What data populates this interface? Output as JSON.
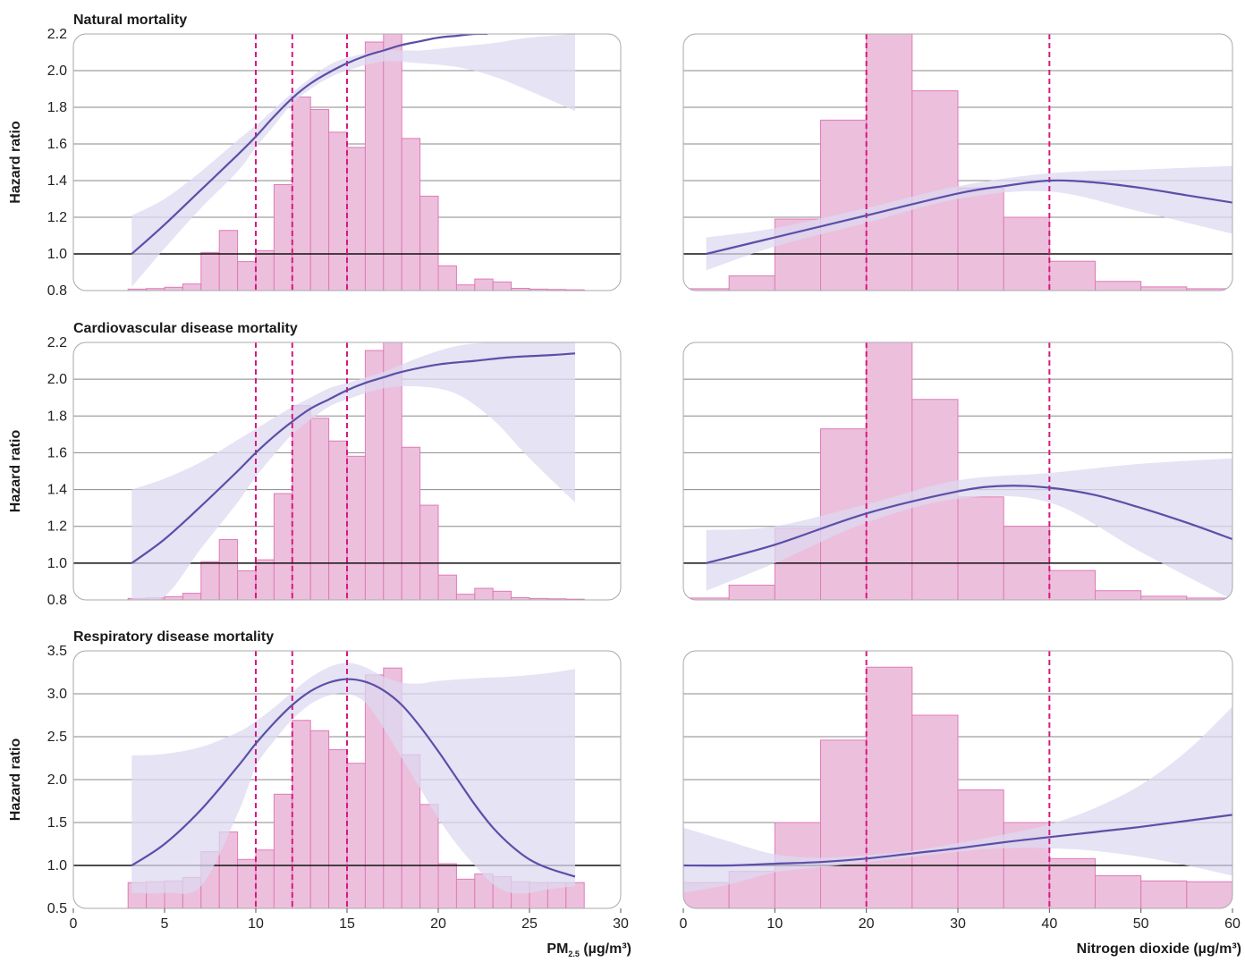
{
  "colors": {
    "bar_fill": "#ecc0dc",
    "bar_stroke": "#e07ab8",
    "curve": "#5b4fa8",
    "band": "#dcdaf0",
    "vline": "#d9177f",
    "grid": "#888888",
    "ref_line": "#111111",
    "frame": "#aaaaaa"
  },
  "xaxis": {
    "pm": {
      "label_main": "PM",
      "label_sub": "2.5",
      "label_units": " (µg/m³)",
      "range": [
        0,
        30
      ],
      "ticks": [
        "0",
        "5",
        "10",
        "15",
        "20",
        "25",
        "30"
      ]
    },
    "no2": {
      "label": "Nitrogen dioxide (µg/m³)",
      "range": [
        0,
        60
      ],
      "ticks": [
        "0",
        "10",
        "20",
        "30",
        "40",
        "50",
        "60"
      ]
    }
  },
  "chart_data": [
    {
      "type": "line",
      "row": 0,
      "exposure": "pm",
      "title": "Natural mortality",
      "ylabel": "Hazard ratio",
      "ylim": [
        0.8,
        2.2
      ],
      "yticks": [
        "0.8",
        "1.0",
        "1.2",
        "1.4",
        "1.6",
        "1.8",
        "2.0",
        "2.2"
      ],
      "reference_y": 1.0,
      "vlines": [
        10,
        12,
        15
      ],
      "curve": {
        "x": [
          3.2,
          5,
          7,
          9,
          10,
          11,
          12,
          13,
          14,
          15,
          16,
          17,
          18,
          19,
          20,
          21,
          22,
          22.7
        ],
        "y": [
          1.0,
          1.16,
          1.35,
          1.54,
          1.64,
          1.75,
          1.85,
          1.93,
          1.99,
          2.04,
          2.08,
          2.11,
          2.14,
          2.16,
          2.18,
          2.19,
          2.2,
          2.2
        ]
      },
      "band_upper": {
        "x": [
          3.2,
          5,
          7,
          9,
          10,
          11,
          12,
          13,
          14,
          15,
          17,
          19,
          21,
          23,
          25,
          27.5
        ],
        "y": [
          1.21,
          1.3,
          1.45,
          1.62,
          1.7,
          1.79,
          1.88,
          1.96,
          2.03,
          2.07,
          2.11,
          2.11,
          2.13,
          2.15,
          2.18,
          2.2
        ]
      },
      "band_lower": {
        "x": [
          3.2,
          5,
          7,
          9,
          10,
          11,
          12,
          13,
          14,
          15,
          17,
          19,
          21,
          23,
          25,
          27.5
        ],
        "y": [
          0.82,
          1.03,
          1.25,
          1.45,
          1.58,
          1.7,
          1.82,
          1.9,
          1.96,
          2.0,
          2.05,
          2.04,
          2.02,
          1.97,
          1.89,
          1.78
        ]
      },
      "hist": {
        "edges": [
          3,
          4,
          5,
          6,
          7,
          8,
          9,
          10,
          11,
          12,
          13,
          14,
          15,
          16,
          17,
          18,
          19,
          20,
          21,
          22,
          23,
          24,
          25,
          26,
          27,
          28
        ],
        "heights": [
          0.808,
          0.811,
          0.818,
          0.836,
          1.008,
          1.128,
          0.958,
          1.018,
          1.378,
          1.856,
          1.788,
          1.664,
          1.581,
          2.156,
          2.2,
          1.63,
          1.315,
          0.935,
          0.831,
          0.863,
          0.847,
          0.812,
          0.808,
          0.806,
          0.804
        ]
      }
    },
    {
      "type": "line",
      "row": 0,
      "exposure": "no2",
      "ylim": [
        0.8,
        2.2
      ],
      "reference_y": 1.0,
      "vlines": [
        20,
        40
      ],
      "curve": {
        "x": [
          2.5,
          10,
          20,
          30,
          35,
          40,
          45,
          50,
          55,
          60
        ],
        "y": [
          1.0,
          1.09,
          1.21,
          1.33,
          1.37,
          1.4,
          1.39,
          1.36,
          1.32,
          1.28
        ]
      },
      "band_upper": {
        "x": [
          2.5,
          10,
          20,
          30,
          40,
          50,
          60
        ],
        "y": [
          1.09,
          1.14,
          1.25,
          1.37,
          1.44,
          1.46,
          1.48
        ]
      },
      "band_lower": {
        "x": [
          2.5,
          10,
          20,
          30,
          40,
          50,
          60
        ],
        "y": [
          0.91,
          1.04,
          1.17,
          1.3,
          1.34,
          1.23,
          1.11
        ]
      },
      "hist": {
        "edges": [
          0,
          5,
          10,
          15,
          20,
          25,
          30,
          35,
          40,
          45,
          50,
          55,
          60
        ],
        "heights": [
          0.81,
          0.88,
          1.19,
          1.73,
          2.2,
          1.89,
          1.36,
          1.2,
          0.96,
          0.85,
          0.82,
          0.81
        ]
      }
    },
    {
      "type": "line",
      "row": 1,
      "exposure": "pm",
      "title": "Cardiovascular disease mortality",
      "ylabel": "Hazard ratio",
      "ylim": [
        0.8,
        2.2
      ],
      "yticks": [
        "0.8",
        "1.0",
        "1.2",
        "1.4",
        "1.6",
        "1.8",
        "2.0",
        "2.2"
      ],
      "reference_y": 1.0,
      "vlines": [
        10,
        12,
        15
      ],
      "curve": {
        "x": [
          3.2,
          5,
          7,
          9,
          10,
          11,
          12,
          13,
          14,
          15,
          16,
          17,
          18,
          20,
          22,
          24,
          26,
          27.5
        ],
        "y": [
          1.0,
          1.13,
          1.31,
          1.5,
          1.6,
          1.69,
          1.77,
          1.84,
          1.89,
          1.94,
          1.98,
          2.01,
          2.04,
          2.08,
          2.1,
          2.12,
          2.13,
          2.14
        ]
      },
      "band_upper": {
        "x": [
          3.2,
          5,
          7,
          9,
          10,
          11,
          12,
          13,
          14,
          15,
          17,
          19,
          21,
          23,
          25,
          27.5
        ],
        "y": [
          1.4,
          1.46,
          1.55,
          1.67,
          1.73,
          1.79,
          1.85,
          1.9,
          1.95,
          1.98,
          2.04,
          2.12,
          2.18,
          2.2,
          2.2,
          2.2
        ]
      },
      "band_lower": {
        "x": [
          3.2,
          5,
          7,
          9,
          10,
          11,
          12,
          13,
          14,
          15,
          17,
          19,
          21,
          23,
          25,
          27.5
        ],
        "y": [
          0.8,
          0.82,
          1.08,
          1.33,
          1.47,
          1.59,
          1.7,
          1.78,
          1.85,
          1.89,
          1.95,
          1.96,
          1.92,
          1.78,
          1.57,
          1.33
        ]
      },
      "hist": {
        "edges": [
          3,
          4,
          5,
          6,
          7,
          8,
          9,
          10,
          11,
          12,
          13,
          14,
          15,
          16,
          17,
          18,
          19,
          20,
          21,
          22,
          23,
          24,
          25,
          26,
          27,
          28
        ],
        "heights": [
          0.808,
          0.811,
          0.818,
          0.836,
          1.008,
          1.128,
          0.958,
          1.018,
          1.378,
          1.856,
          1.788,
          1.664,
          1.581,
          2.156,
          2.2,
          1.63,
          1.315,
          0.935,
          0.831,
          0.863,
          0.847,
          0.812,
          0.808,
          0.806,
          0.804
        ]
      }
    },
    {
      "type": "line",
      "row": 1,
      "exposure": "no2",
      "ylim": [
        0.8,
        2.2
      ],
      "reference_y": 1.0,
      "vlines": [
        20,
        40
      ],
      "curve": {
        "x": [
          2.5,
          10,
          20,
          30,
          35,
          40,
          45,
          50,
          55,
          60
        ],
        "y": [
          1.0,
          1.1,
          1.27,
          1.39,
          1.42,
          1.41,
          1.37,
          1.3,
          1.22,
          1.13
        ]
      },
      "band_upper": {
        "x": [
          2.5,
          10,
          20,
          30,
          40,
          50,
          60
        ],
        "y": [
          1.18,
          1.2,
          1.32,
          1.45,
          1.49,
          1.54,
          1.57
        ]
      },
      "band_lower": {
        "x": [
          2.5,
          10,
          20,
          30,
          40,
          50,
          60
        ],
        "y": [
          0.85,
          1.0,
          1.22,
          1.35,
          1.33,
          1.06,
          0.8
        ]
      },
      "hist": {
        "edges": [
          0,
          5,
          10,
          15,
          20,
          25,
          30,
          35,
          40,
          45,
          50,
          55,
          60
        ],
        "heights": [
          0.81,
          0.88,
          1.19,
          1.73,
          2.2,
          1.89,
          1.36,
          1.2,
          0.96,
          0.85,
          0.82,
          0.81
        ]
      }
    },
    {
      "type": "line",
      "row": 2,
      "exposure": "pm",
      "title": "Respiratory disease mortality",
      "ylabel": "Hazard ratio",
      "ylim": [
        0.5,
        3.5
      ],
      "yticks": [
        "0.5",
        "1.0",
        "1.5",
        "2.0",
        "2.5",
        "3.0",
        "3.5"
      ],
      "reference_y": 1.0,
      "vlines": [
        10,
        12,
        15
      ],
      "curve": {
        "x": [
          3.2,
          5,
          7,
          9,
          10,
          11,
          12,
          13,
          14,
          15,
          16,
          17,
          18,
          19,
          20,
          21,
          22,
          23,
          24,
          25,
          26,
          27.5
        ],
        "y": [
          1.0,
          1.25,
          1.65,
          2.15,
          2.42,
          2.66,
          2.87,
          3.03,
          3.13,
          3.17,
          3.14,
          3.04,
          2.87,
          2.62,
          2.33,
          2.02,
          1.71,
          1.44,
          1.23,
          1.07,
          0.97,
          0.87
        ]
      },
      "band_upper": {
        "x": [
          3.2,
          5,
          7,
          9,
          10,
          11,
          12,
          13,
          14,
          15,
          16,
          17,
          18,
          19,
          20,
          22,
          24,
          26,
          27.5
        ],
        "y": [
          2.28,
          2.3,
          2.38,
          2.55,
          2.68,
          2.84,
          3.02,
          3.19,
          3.31,
          3.36,
          3.31,
          3.2,
          3.13,
          3.12,
          3.15,
          3.18,
          3.2,
          3.24,
          3.29
        ]
      },
      "band_lower": {
        "x": [
          3.2,
          5,
          7,
          9,
          10,
          11,
          12,
          13,
          14,
          15,
          16,
          17,
          18,
          19,
          20,
          21,
          22,
          23,
          24,
          25,
          26,
          27.5
        ],
        "y": [
          0.68,
          0.68,
          0.76,
          1.6,
          2.15,
          2.45,
          2.7,
          2.88,
          2.98,
          3.0,
          2.9,
          2.6,
          2.25,
          1.9,
          1.55,
          1.25,
          1.0,
          0.78,
          0.68,
          0.68,
          0.72,
          0.76
        ]
      },
      "hist": {
        "edges": [
          3,
          4,
          5,
          6,
          7,
          8,
          9,
          10,
          11,
          12,
          13,
          14,
          15,
          16,
          17,
          18,
          19,
          20,
          21,
          22,
          23,
          24,
          25,
          26,
          27,
          28
        ],
        "heights": [
          0.8,
          0.81,
          0.82,
          0.86,
          1.16,
          1.39,
          1.07,
          1.18,
          1.83,
          2.69,
          2.57,
          2.35,
          2.19,
          3.22,
          3.3,
          2.29,
          1.71,
          1.02,
          0.84,
          0.9,
          0.87,
          0.81,
          0.8,
          0.8,
          0.8
        ]
      }
    },
    {
      "type": "line",
      "row": 2,
      "exposure": "no2",
      "ylim": [
        0.5,
        3.5
      ],
      "reference_y": 1.0,
      "vlines": [
        20,
        40
      ],
      "curve": {
        "x": [
          0,
          5,
          10,
          15,
          20,
          25,
          30,
          35,
          40,
          45,
          50,
          55,
          60
        ],
        "y": [
          1.0,
          1.0,
          1.02,
          1.04,
          1.08,
          1.14,
          1.2,
          1.27,
          1.33,
          1.39,
          1.45,
          1.52,
          1.59
        ]
      },
      "band_upper": {
        "x": [
          0,
          5,
          10,
          15,
          20,
          25,
          30,
          35,
          40,
          45,
          50,
          55,
          60
        ],
        "y": [
          1.44,
          1.28,
          1.13,
          1.09,
          1.12,
          1.17,
          1.26,
          1.36,
          1.48,
          1.67,
          1.94,
          2.33,
          2.85
        ]
      },
      "band_lower": {
        "x": [
          0,
          5,
          10,
          15,
          20,
          25,
          30,
          35,
          40,
          45,
          50,
          55,
          60
        ],
        "y": [
          0.68,
          0.78,
          0.92,
          0.98,
          1.04,
          1.1,
          1.16,
          1.2,
          1.2,
          1.17,
          1.1,
          1.0,
          0.88
        ]
      },
      "hist": {
        "edges": [
          0,
          5,
          10,
          15,
          20,
          25,
          30,
          35,
          40,
          45,
          50,
          55,
          60
        ],
        "heights": [
          0.8,
          0.93,
          1.5,
          2.46,
          3.31,
          2.75,
          1.88,
          1.5,
          1.08,
          0.88,
          0.82,
          0.81
        ]
      }
    }
  ]
}
